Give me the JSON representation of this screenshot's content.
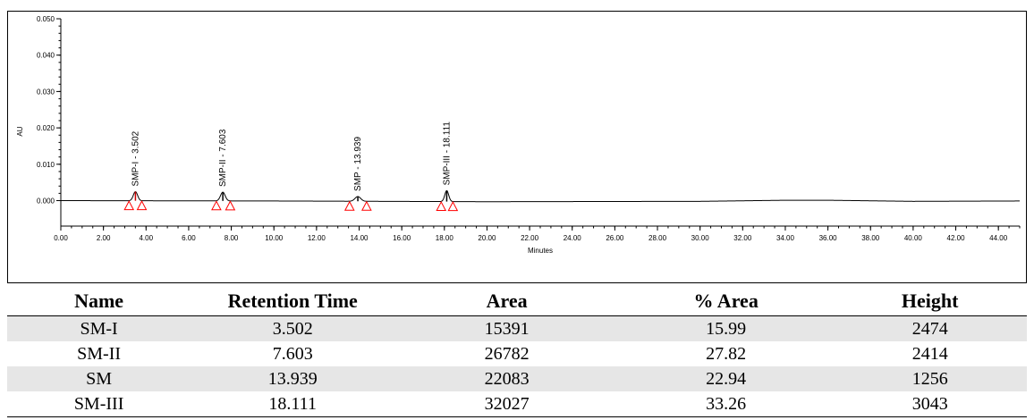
{
  "chart_data": {
    "type": "line",
    "title": "",
    "xlabel": "Minutes",
    "ylabel": "AU",
    "xlim": [
      0,
      45
    ],
    "ylim": [
      -0.007,
      0.05
    ],
    "x_ticks": [
      "0.00",
      "2.00",
      "4.00",
      "6.00",
      "8.00",
      "10.00",
      "12.00",
      "14.00",
      "16.00",
      "18.00",
      "20.00",
      "22.00",
      "24.00",
      "26.00",
      "28.00",
      "30.00",
      "32.00",
      "34.00",
      "36.00",
      "38.00",
      "40.00",
      "42.00",
      "44.00"
    ],
    "y_ticks": [
      "0.050",
      "0.040",
      "0.030",
      "0.020",
      "0.010",
      "0.000"
    ],
    "grid": false,
    "baseline": [
      [
        0,
        0.0
      ],
      [
        10,
        -0.0001
      ],
      [
        20,
        -0.0003
      ],
      [
        30,
        -0.0002
      ],
      [
        34,
        0.0001
      ],
      [
        36,
        0.0001
      ],
      [
        40,
        -0.0002
      ],
      [
        45,
        -0.0001
      ]
    ],
    "peaks": [
      {
        "label": "SMP-I - 3.502",
        "rt": 3.502,
        "height": 0.0025,
        "color": "#cc0000",
        "start": 3.2,
        "end": 3.8
      },
      {
        "label": "SMP-II - 7.603",
        "rt": 7.603,
        "height": 0.0024,
        "color": "#000000",
        "start": 7.3,
        "end": 7.95
      },
      {
        "label": "SMP - 13.939",
        "rt": 13.939,
        "height": 0.0013,
        "color": "#000000",
        "start": 13.55,
        "end": 14.35
      },
      {
        "label": "SMP-III - 18.111",
        "rt": 18.111,
        "height": 0.003,
        "color": "#000000",
        "start": 17.85,
        "end": 18.4
      }
    ],
    "marker_color": "#ff0000"
  },
  "table": {
    "headers": [
      "Name",
      "Retention Time",
      "Area",
      "% Area",
      "Height"
    ],
    "rows": [
      [
        "SM-I",
        "3.502",
        "15391",
        "15.99",
        "2474"
      ],
      [
        "SM-II",
        "7.603",
        "26782",
        "27.82",
        "2414"
      ],
      [
        "SM",
        "13.939",
        "22083",
        "22.94",
        "1256"
      ],
      [
        "SM-III",
        "18.111",
        "32027",
        "33.26",
        "3043"
      ]
    ]
  }
}
